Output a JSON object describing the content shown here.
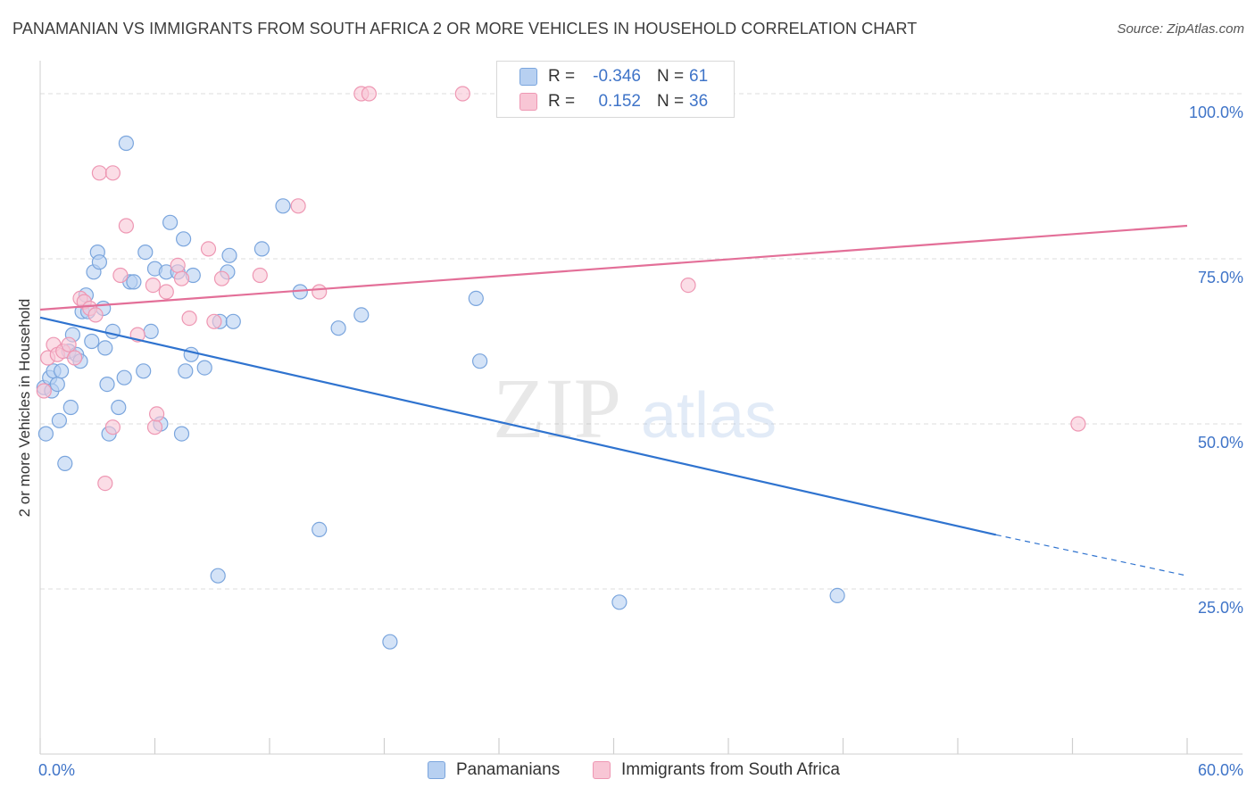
{
  "header": {
    "title": "PANAMANIAN VS IMMIGRANTS FROM SOUTH AFRICA 2 OR MORE VEHICLES IN HOUSEHOLD CORRELATION CHART",
    "source": "Source: ZipAtlas.com"
  },
  "watermark": {
    "zip": "ZIP",
    "atlas": "atlas"
  },
  "legend_top": {
    "rows": [
      {
        "r_label": "R =",
        "r_value": "-0.346",
        "n_label": "N =",
        "n_value": "61"
      },
      {
        "r_label": "R =",
        "r_value": "0.152",
        "n_label": "N =",
        "n_value": "36"
      }
    ]
  },
  "legend_bottom": {
    "items": [
      {
        "label": "Panamanians"
      },
      {
        "label": "Immigrants from South Africa"
      }
    ]
  },
  "colors": {
    "blue_fill": "#b7d0f1",
    "blue_stroke": "#7aa5dd",
    "blue_line": "#2f73cf",
    "pink_fill": "#f8c6d5",
    "pink_stroke": "#ee97b3",
    "pink_line": "#e36f98",
    "axis_text": "#3f74c8",
    "grid": "#dedede"
  },
  "chart_data": {
    "type": "scatter",
    "title": "PANAMANIAN VS IMMIGRANTS FROM SOUTH AFRICA 2 OR MORE VEHICLES IN HOUSEHOLD CORRELATION CHART",
    "xlabel": "",
    "ylabel": "2 or more Vehicles in Household",
    "xlim": [
      0,
      60
    ],
    "ylim": [
      0,
      105
    ],
    "x_tick_labels": [
      {
        "value": 0,
        "label": "0.0%"
      },
      {
        "value": 60,
        "label": "60.0%"
      }
    ],
    "y_tick_labels": [
      {
        "value": 25,
        "label": "25.0%"
      },
      {
        "value": 50,
        "label": "50.0%"
      },
      {
        "value": 75,
        "label": "75.0%"
      },
      {
        "value": 100,
        "label": "100.0%"
      }
    ],
    "series": [
      {
        "name": "Panamanians",
        "r": -0.346,
        "n": 61,
        "trend": {
          "x0": 0,
          "y0": 66.1,
          "x1": 50,
          "y1": 33.2,
          "dash_to_x": 60,
          "dash_to_y": 27.0
        },
        "points": [
          [
            0.2,
            55.5
          ],
          [
            0.3,
            48.5
          ],
          [
            0.5,
            57.0
          ],
          [
            0.6,
            55.0
          ],
          [
            0.7,
            58.0
          ],
          [
            0.9,
            56.0
          ],
          [
            1.0,
            50.5
          ],
          [
            1.1,
            58.0
          ],
          [
            1.3,
            44.0
          ],
          [
            1.5,
            61.0
          ],
          [
            1.6,
            52.5
          ],
          [
            1.7,
            63.5
          ],
          [
            1.9,
            60.5
          ],
          [
            2.1,
            59.5
          ],
          [
            2.2,
            67.0
          ],
          [
            2.4,
            69.5
          ],
          [
            2.5,
            67.0
          ],
          [
            2.7,
            62.5
          ],
          [
            2.8,
            73.0
          ],
          [
            3.0,
            76.0
          ],
          [
            3.1,
            74.5
          ],
          [
            3.3,
            67.5
          ],
          [
            3.4,
            61.5
          ],
          [
            3.5,
            56.0
          ],
          [
            3.6,
            48.5
          ],
          [
            3.8,
            64.0
          ],
          [
            4.1,
            52.5
          ],
          [
            4.4,
            57.0
          ],
          [
            4.5,
            92.5
          ],
          [
            4.7,
            71.5
          ],
          [
            4.9,
            71.5
          ],
          [
            5.4,
            58.0
          ],
          [
            5.5,
            76.0
          ],
          [
            5.8,
            64.0
          ],
          [
            6.0,
            73.5
          ],
          [
            6.3,
            50.0
          ],
          [
            6.6,
            73.0
          ],
          [
            6.8,
            80.5
          ],
          [
            7.2,
            73.0
          ],
          [
            7.4,
            48.5
          ],
          [
            7.5,
            78.0
          ],
          [
            7.6,
            58.0
          ],
          [
            7.9,
            60.5
          ],
          [
            8.0,
            72.5
          ],
          [
            8.6,
            58.5
          ],
          [
            9.3,
            27.0
          ],
          [
            9.4,
            65.5
          ],
          [
            9.8,
            73.0
          ],
          [
            9.9,
            75.5
          ],
          [
            10.1,
            65.5
          ],
          [
            11.6,
            76.5
          ],
          [
            12.7,
            83.0
          ],
          [
            13.6,
            70.0
          ],
          [
            14.6,
            34.0
          ],
          [
            15.6,
            64.5
          ],
          [
            16.8,
            66.5
          ],
          [
            18.3,
            17.0
          ],
          [
            22.8,
            69.0
          ],
          [
            23.0,
            59.5
          ],
          [
            30.3,
            23.0
          ],
          [
            41.7,
            24.0
          ]
        ]
      },
      {
        "name": "Immigrants from South Africa",
        "r": 0.152,
        "n": 36,
        "trend": {
          "x0": 0,
          "y0": 67.3,
          "x1": 60,
          "y1": 80.0
        },
        "points": [
          [
            0.2,
            55.0
          ],
          [
            0.4,
            60.0
          ],
          [
            0.7,
            62.0
          ],
          [
            0.9,
            60.5
          ],
          [
            1.2,
            61.0
          ],
          [
            1.5,
            62.0
          ],
          [
            1.8,
            60.0
          ],
          [
            2.1,
            69.0
          ],
          [
            2.3,
            68.5
          ],
          [
            2.6,
            67.5
          ],
          [
            2.9,
            66.5
          ],
          [
            3.1,
            88.0
          ],
          [
            3.8,
            88.0
          ],
          [
            3.8,
            49.5
          ],
          [
            3.4,
            41.0
          ],
          [
            4.5,
            80.0
          ],
          [
            4.2,
            72.5
          ],
          [
            5.1,
            63.5
          ],
          [
            5.9,
            71.0
          ],
          [
            6.0,
            49.5
          ],
          [
            6.1,
            51.5
          ],
          [
            6.6,
            70.0
          ],
          [
            7.2,
            74.0
          ],
          [
            7.4,
            72.0
          ],
          [
            7.8,
            66.0
          ],
          [
            8.8,
            76.5
          ],
          [
            9.1,
            65.5
          ],
          [
            9.5,
            72.0
          ],
          [
            11.5,
            72.5
          ],
          [
            13.5,
            83.0
          ],
          [
            14.6,
            70.0
          ],
          [
            16.8,
            100.0
          ],
          [
            17.2,
            100.0
          ],
          [
            22.1,
            100.0
          ],
          [
            33.9,
            71.0
          ],
          [
            54.3,
            50.0
          ]
        ]
      }
    ]
  }
}
